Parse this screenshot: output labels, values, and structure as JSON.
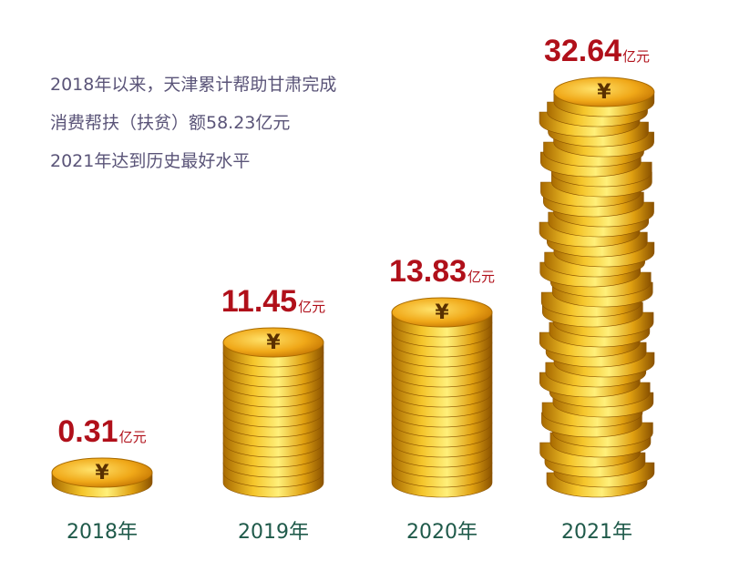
{
  "intro": {
    "lines": [
      "2018年以来，天津累计帮助甘肃完成",
      "消费帮扶（扶贫）额58.23亿元",
      "2021年达到历史最好水平"
    ]
  },
  "chart_data": {
    "type": "bar",
    "style": "coin stacks",
    "categories": [
      "2018年",
      "2019年",
      "2020年",
      "2021年"
    ],
    "values": [
      0.31,
      11.45,
      13.83,
      32.64
    ],
    "value_labels": [
      "0.31",
      "11.45",
      "13.83",
      "32.64"
    ],
    "unit": "亿元",
    "colors": {
      "coin": "#e8b21a",
      "value_text": "#b0101a",
      "year_text": "#1f5a4a",
      "intro_text": "#5a5478"
    }
  }
}
